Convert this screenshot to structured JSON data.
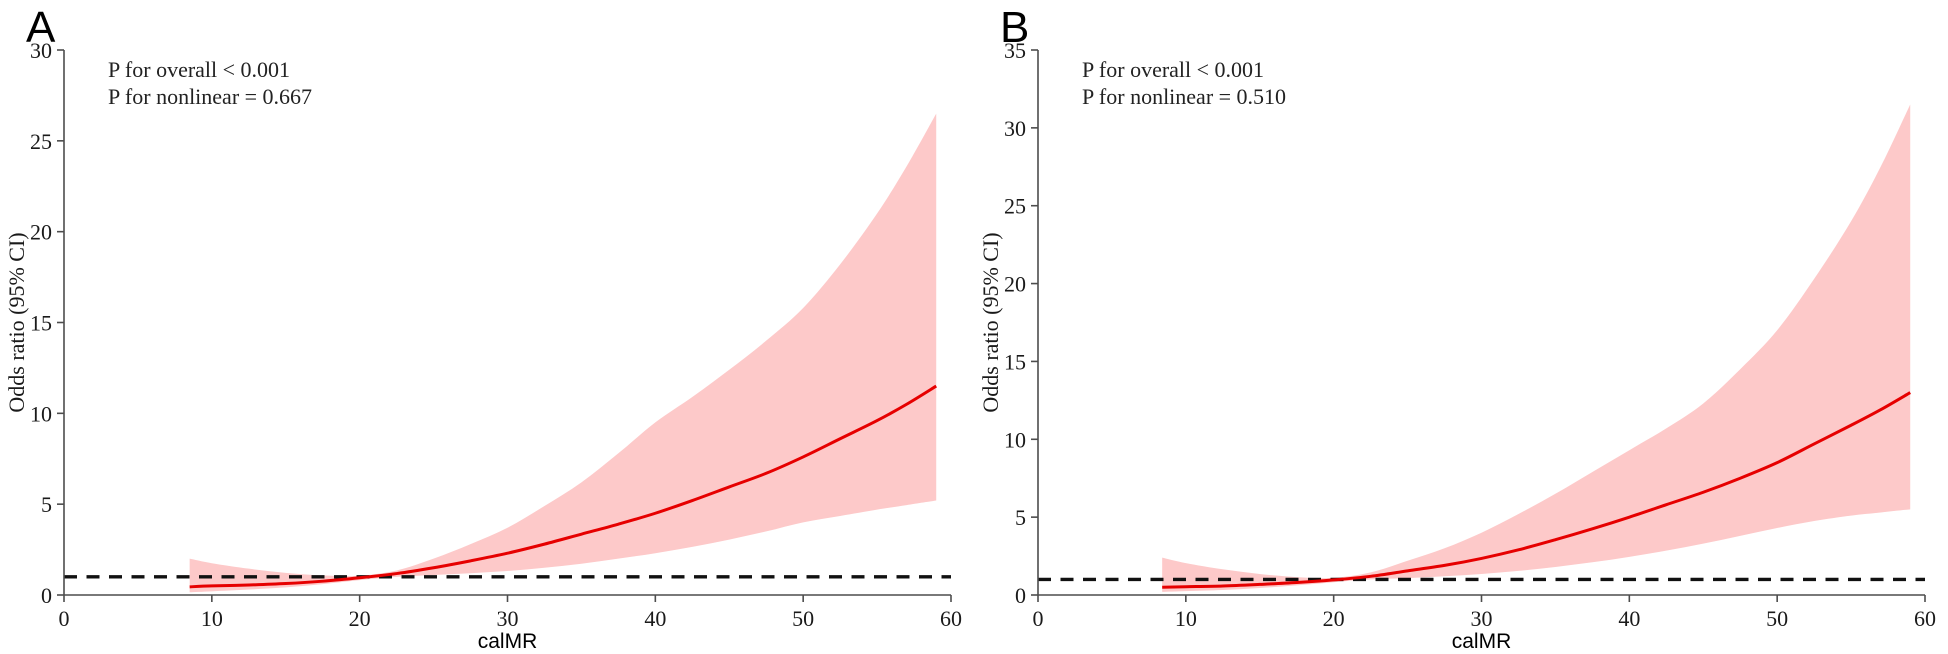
{
  "figure": {
    "background": "#ffffff",
    "x_axis_title": "calMR",
    "y_axis_title": "Odds ratio (95% CI)"
  },
  "chart_data": [
    {
      "type": "line",
      "panel_label": "A",
      "title_annotations": [
        "P for overall < 0.001",
        "P for nonlinear = 0.667"
      ],
      "xlabel": "calMR",
      "ylabel": "Odds ratio (95% CI)",
      "xlim": [
        0,
        60
      ],
      "xtick_step": 10,
      "ylim": [
        0,
        30
      ],
      "ytick_step": 5,
      "grid": false,
      "legend": "none",
      "reference_line_y": 1,
      "colors": {
        "curve": "#e60000",
        "band": "#fdc9c9",
        "reference": "#111111",
        "axis": "#4d4d4d",
        "text": "#1a1a1a"
      },
      "x": [
        8.5,
        10,
        12.5,
        15,
        17.5,
        20,
        22.5,
        25,
        27.5,
        30,
        32.5,
        35,
        37.5,
        40,
        42.5,
        45,
        47.5,
        50,
        52.5,
        55,
        57,
        59
      ],
      "series": [
        {
          "name": "odds_ratio",
          "values": [
            0.45,
            0.5,
            0.55,
            0.63,
            0.76,
            0.95,
            1.18,
            1.5,
            1.88,
            2.3,
            2.8,
            3.35,
            3.9,
            4.5,
            5.2,
            5.95,
            6.7,
            7.6,
            8.6,
            9.6,
            10.5,
            11.5
          ]
        },
        {
          "name": "ci_lower",
          "values": [
            0.15,
            0.2,
            0.3,
            0.42,
            0.6,
            0.82,
            1.0,
            1.1,
            1.2,
            1.32,
            1.5,
            1.72,
            2.0,
            2.3,
            2.65,
            3.05,
            3.5,
            4.0,
            4.35,
            4.7,
            4.95,
            5.2
          ]
        },
        {
          "name": "ci_upper",
          "values": [
            2.0,
            1.75,
            1.45,
            1.22,
            1.08,
            1.06,
            1.35,
            2.0,
            2.8,
            3.7,
            4.9,
            6.2,
            7.8,
            9.5,
            10.9,
            12.4,
            14.0,
            15.8,
            18.2,
            21.0,
            23.6,
            26.5
          ]
        }
      ]
    },
    {
      "type": "line",
      "panel_label": "B",
      "title_annotations": [
        "P for overall < 0.001",
        "P for nonlinear = 0.510"
      ],
      "xlabel": "calMR",
      "ylabel": "Odds ratio (95% CI)",
      "xlim": [
        0,
        60
      ],
      "xtick_step": 10,
      "ylim": [
        0,
        35
      ],
      "ytick_step": 5,
      "grid": false,
      "legend": "none",
      "reference_line_y": 1,
      "colors": {
        "curve": "#e60000",
        "band": "#fdc9c9",
        "reference": "#111111",
        "axis": "#4d4d4d",
        "text": "#1a1a1a"
      },
      "x": [
        8.4,
        10,
        12.5,
        15,
        17.5,
        20,
        22.5,
        25,
        27.5,
        30,
        32.5,
        35,
        37.5,
        40,
        42.5,
        45,
        47.5,
        50,
        52.5,
        55,
        57,
        59
      ],
      "series": [
        {
          "name": "odds_ratio",
          "values": [
            0.5,
            0.53,
            0.58,
            0.68,
            0.8,
            0.97,
            1.2,
            1.55,
            1.9,
            2.35,
            2.9,
            3.55,
            4.25,
            5.0,
            5.8,
            6.6,
            7.5,
            8.5,
            9.7,
            10.9,
            11.9,
            13.0
          ]
        },
        {
          "name": "ci_lower",
          "values": [
            0.2,
            0.25,
            0.32,
            0.45,
            0.62,
            0.82,
            1.0,
            1.08,
            1.2,
            1.35,
            1.55,
            1.8,
            2.1,
            2.45,
            2.85,
            3.3,
            3.8,
            4.3,
            4.75,
            5.1,
            5.3,
            5.5
          ]
        },
        {
          "name": "ci_upper",
          "values": [
            2.4,
            2.05,
            1.65,
            1.35,
            1.15,
            1.1,
            1.45,
            2.2,
            3.0,
            4.0,
            5.2,
            6.5,
            7.9,
            9.3,
            10.7,
            12.3,
            14.5,
            17.0,
            20.3,
            24.0,
            27.5,
            31.5
          ]
        }
      ]
    }
  ]
}
